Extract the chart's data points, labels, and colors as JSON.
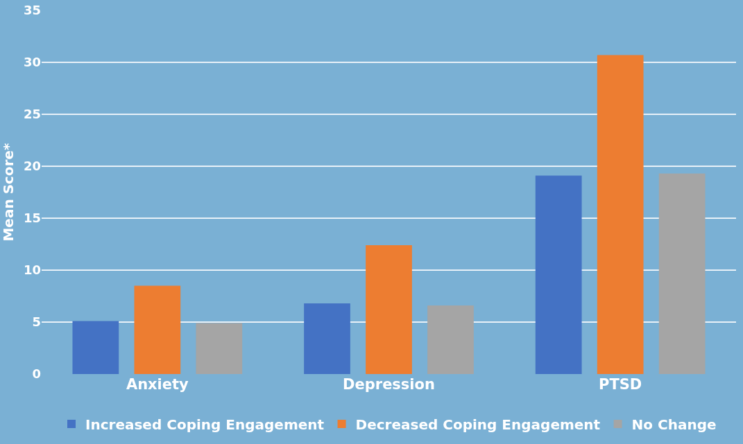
{
  "chart_data": {
    "type": "bar",
    "ylabel": "Mean Score*",
    "categories": [
      "Anxiety",
      "Depression",
      "PTSD"
    ],
    "series": [
      {
        "name": "Increased Coping Engagement",
        "color": "#4472c4",
        "values": [
          5.1,
          6.8,
          19.1
        ]
      },
      {
        "name": "Decreased Coping Engagement",
        "color": "#ed7d31",
        "values": [
          8.5,
          12.4,
          30.7
        ]
      },
      {
        "name": "No Change",
        "color": "#a5a5a5",
        "values": [
          4.9,
          6.6,
          19.3
        ]
      }
    ],
    "ylim": [
      0,
      35
    ],
    "yticks": [
      0,
      5,
      10,
      15,
      20,
      25,
      30,
      35
    ],
    "grid": "y",
    "legend": "bottom"
  }
}
